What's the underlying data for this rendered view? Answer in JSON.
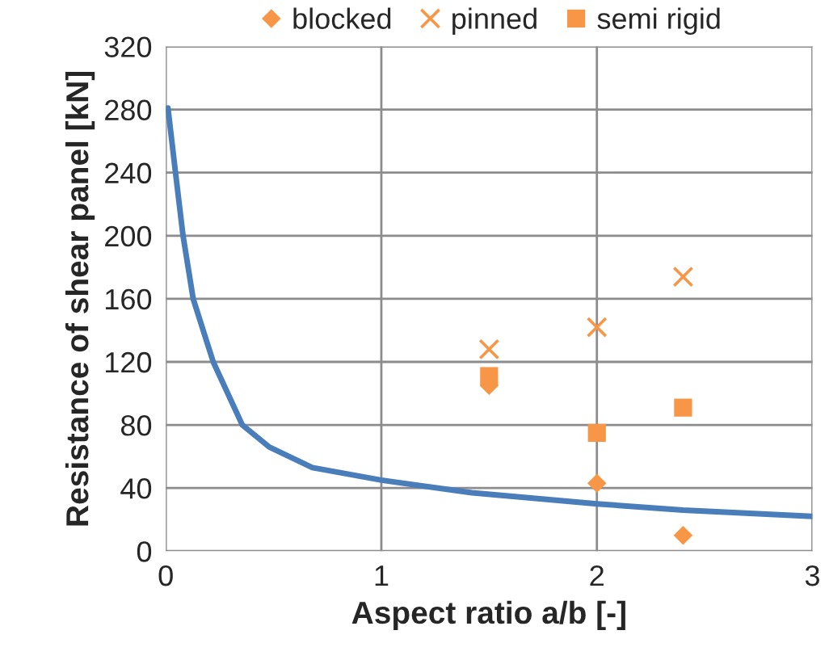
{
  "chart_data": {
    "type": "scatter",
    "xlabel": "Aspect ratio a/b [-]",
    "ylabel": "Resistance of shear panel [kN]",
    "xlim": [
      0,
      3
    ],
    "xticks": [
      0,
      1,
      2,
      3
    ],
    "ylim": [
      0,
      320
    ],
    "yticks": [
      0,
      40,
      80,
      120,
      160,
      200,
      240,
      280,
      320
    ],
    "grid": true,
    "legend": "top",
    "series": [
      {
        "type": "line",
        "color": "#4a7ebb",
        "marker": "none",
        "x": [
          0.01,
          0.045,
          0.08,
          0.127,
          0.22,
          0.355,
          0.48,
          0.68,
          1.0,
          1.42,
          2.0,
          2.4,
          3.0
        ],
        "values": [
          281,
          240,
          200,
          160,
          120,
          80,
          66,
          53,
          45,
          37,
          30,
          26,
          22
        ]
      },
      {
        "name": "blocked",
        "color": "#f79646",
        "marker": "diamond",
        "x": [
          1.5,
          2,
          2.4
        ],
        "values": [
          105,
          43,
          10
        ]
      },
      {
        "name": "pinned",
        "color": "#f79646",
        "marker": "cross",
        "x": [
          1.5,
          2,
          2.4
        ],
        "values": [
          128,
          142,
          174
        ]
      },
      {
        "name": "semi rigid",
        "color": "#f79646",
        "marker": "square",
        "x": [
          1.5,
          2,
          2.4
        ],
        "values": [
          111,
          75,
          91
        ]
      }
    ]
  }
}
